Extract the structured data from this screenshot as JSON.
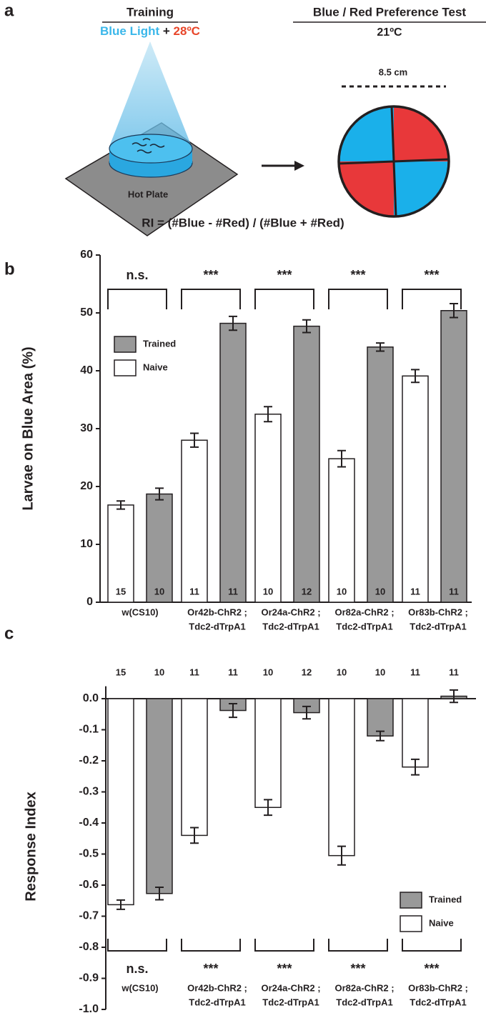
{
  "panel_letters": [
    "a",
    "b",
    "c"
  ],
  "panel_a": {
    "training_title": "Training",
    "light": "Blue Light",
    "plus": "+",
    "temperature": "28ºC",
    "plate": "Hot Plate",
    "test_title": "Blue / Red Preference Test",
    "test_temperature": "21ºC",
    "diameter": "8.5 cm",
    "formula": "RI = (#Blue - #Red) / (#Blue + #Red)"
  },
  "chart_data": [
    {
      "type": "bar",
      "ylabel": "Larvae on Blue Area (%)",
      "categories": [
        [
          "w(CS10)"
        ],
        [
          "Or42b-ChR2 ;",
          "Tdc2-dTrpA1"
        ],
        [
          "Or24a-ChR2 ;",
          "Tdc2-dTrpA1"
        ],
        [
          "Or82a-ChR2 ;",
          "Tdc2-dTrpA1"
        ],
        [
          "Or83b-ChR2 ;",
          "Tdc2-dTrpA1"
        ]
      ],
      "series": [
        {
          "name": "Trained",
          "color": "#999999",
          "values": [
            18.7,
            48.2,
            47.7,
            44.1,
            50.4
          ],
          "errors": [
            1.0,
            1.2,
            1.1,
            0.7,
            1.2
          ],
          "n": [
            10,
            11,
            12,
            10,
            11
          ]
        },
        {
          "name": "Naive",
          "color": "#ffffff",
          "values": [
            16.8,
            28.0,
            32.5,
            24.8,
            39.1
          ],
          "errors": [
            0.7,
            1.2,
            1.3,
            1.4,
            1.1
          ],
          "n": [
            15,
            11,
            10,
            10,
            11
          ]
        }
      ],
      "significance": [
        "n.s.",
        "***",
        "***",
        "***",
        "***"
      ],
      "ylim": [
        0,
        60
      ],
      "yticks": [
        0,
        10,
        20,
        30,
        40,
        50,
        60
      ],
      "grid": false
    },
    {
      "type": "bar",
      "ylabel": "Response Index",
      "categories": [
        [
          "w(CS10)"
        ],
        [
          "Or42b-ChR2 ;",
          "Tdc2-dTrpA1"
        ],
        [
          "Or24a-ChR2 ;",
          "Tdc2-dTrpA1"
        ],
        [
          "Or82a-ChR2 ;",
          "Tdc2-dTrpA1"
        ],
        [
          "Or83b-ChR2 ;",
          "Tdc2-dTrpA1"
        ]
      ],
      "series": [
        {
          "name": "Trained",
          "color": "#999999",
          "values": [
            -0.627,
            -0.038,
            -0.045,
            -0.12,
            0.008
          ],
          "errors": [
            0.02,
            0.022,
            0.02,
            0.015,
            0.02
          ],
          "n": [
            10,
            11,
            12,
            10,
            11
          ]
        },
        {
          "name": "Naive",
          "color": "#ffffff",
          "values": [
            -0.663,
            -0.44,
            -0.35,
            -0.505,
            -0.22
          ],
          "errors": [
            0.015,
            0.025,
            0.025,
            0.03,
            0.025
          ],
          "n": [
            15,
            11,
            10,
            10,
            11
          ]
        }
      ],
      "significance": [
        "n.s.",
        "***",
        "***",
        "***",
        "***"
      ],
      "ylim": [
        -1.0,
        0.04
      ],
      "yticks": [
        {
          "value": 0,
          "label": "0.0"
        },
        -0.1,
        -0.2,
        -0.3,
        -0.4,
        -0.5,
        -0.6,
        -0.7,
        -0.8,
        -0.9,
        {
          "value": -1,
          "label": "-1.0"
        }
      ],
      "grid": false
    }
  ]
}
